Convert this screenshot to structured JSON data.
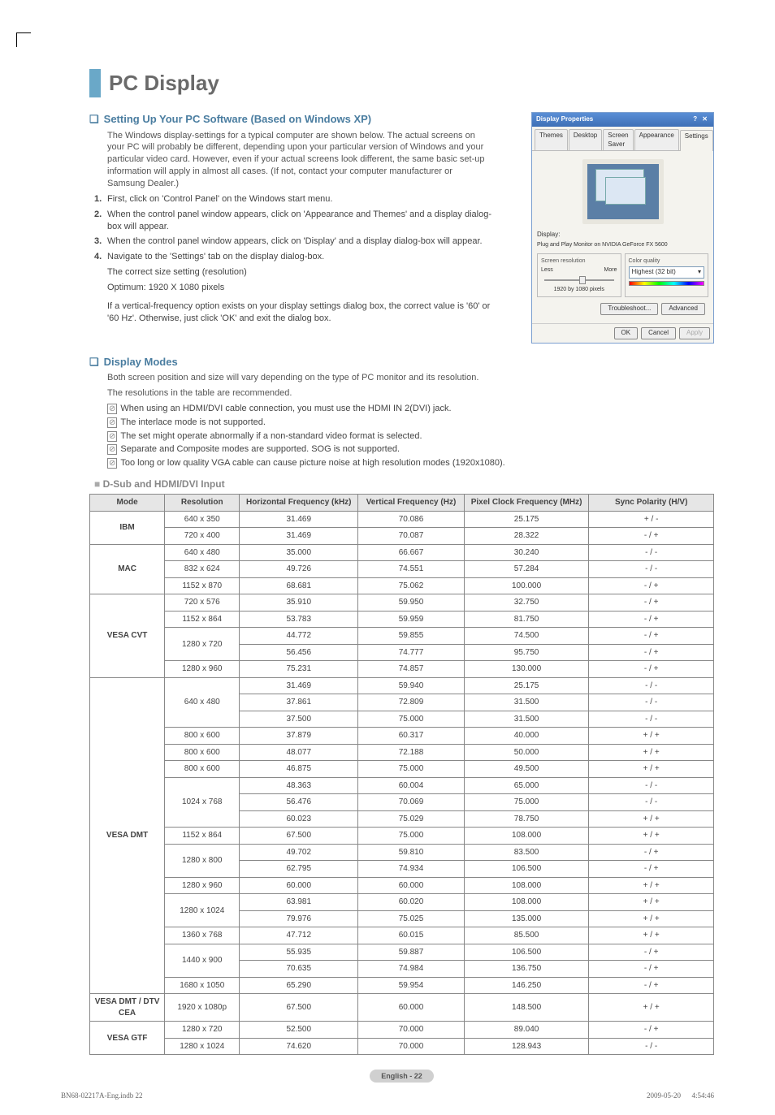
{
  "page": {
    "title": "PC Display",
    "footer_label": "English - 22",
    "indb": "BN68-02217A-Eng.indb   22",
    "timestamp": "2009-05-20      4:54:46"
  },
  "section1": {
    "heading": "Setting Up Your PC Software (Based on Windows XP)",
    "intro": "The Windows display-settings for a typical computer are shown below. The actual screens on your PC will probably be different, depending upon your particular version of Windows and your particular video card. However, even if your actual screens look different, the same basic set-up information will apply in almost all cases. (If not, contact your computer manufacturer or Samsung Dealer.)",
    "steps": [
      "First, click on 'Control Panel' on the Windows start menu.",
      "When the control panel window appears, click on 'Appearance and Themes' and a display dialog-box will appear.",
      "When the control panel window appears, click on 'Display' and a display dialog-box will appear.",
      "Navigate to the 'Settings' tab on the display dialog-box."
    ],
    "step4_extra1": "The correct size setting (resolution)",
    "step4_extra2": "Optimum: 1920 X 1080 pixels",
    "step4_extra3": "If a vertical-frequency option exists on your display settings dialog box, the correct value is '60' or '60 Hz'. Otherwise, just click 'OK' and exit the dialog box."
  },
  "dialog": {
    "title": "Display Properties",
    "tabs": [
      "Themes",
      "Desktop",
      "Screen Saver",
      "Appearance",
      "Settings"
    ],
    "active_tab": 4,
    "display_label": "Display:",
    "display_value": "Plug and Play Monitor on NVIDIA GeForce FX 5600",
    "res_group": "Screen resolution",
    "res_less": "Less",
    "res_more": "More",
    "res_value": "1920 by 1080 pixels",
    "color_group": "Color quality",
    "color_value": "Highest (32 bit)",
    "troubleshoot": "Troubleshoot...",
    "advanced": "Advanced",
    "ok": "OK",
    "cancel": "Cancel",
    "apply": "Apply"
  },
  "section2": {
    "heading": "Display Modes",
    "intro1": "Both screen position and size will vary depending on the type of PC monitor and its resolution.",
    "intro2": "The resolutions in the table are recommended.",
    "notes": [
      "When using an HDMI/DVI cable connection, you must use the HDMI IN 2(DVI) jack.",
      "The interlace mode is not supported.",
      "The set might operate abnormally if a non-standard video format is selected.",
      "Separate and Composite modes are supported. SOG is not supported.",
      "Too long or low quality VGA cable can cause picture noise at high resolution modes (1920x1080)."
    ],
    "table_title": "D-Sub and HDMI/DVI Input"
  },
  "table": {
    "columns": [
      "Mode",
      "Resolution",
      "Horizontal Frequency (kHz)",
      "Vertical Frequency (Hz)",
      "Pixel Clock Frequency (MHz)",
      "Sync Polarity (H/V)"
    ],
    "col_widths": [
      "12%",
      "12%",
      "19%",
      "17%",
      "20%",
      "20%"
    ],
    "header_bg": "#e6e6e6",
    "border_color": "#888888",
    "groups": [
      {
        "mode": "IBM",
        "rows": [
          [
            "640 x 350",
            "31.469",
            "70.086",
            "25.175",
            "+ / -"
          ],
          [
            "720 x 400",
            "31.469",
            "70.087",
            "28.322",
            "- / +"
          ]
        ]
      },
      {
        "mode": "MAC",
        "rows": [
          [
            "640 x 480",
            "35.000",
            "66.667",
            "30.240",
            "- / -"
          ],
          [
            "832 x 624",
            "49.726",
            "74.551",
            "57.284",
            "- / -"
          ],
          [
            "1152 x 870",
            "68.681",
            "75.062",
            "100.000",
            "- / +"
          ]
        ]
      },
      {
        "mode": "VESA CVT",
        "rows": [
          [
            "720 x 576",
            "35.910",
            "59.950",
            "32.750",
            "- / +"
          ],
          [
            "1152 x 864",
            "53.783",
            "59.959",
            "81.750",
            "- / +"
          ],
          [
            "",
            "44.772",
            "59.855",
            "74.500",
            "- / +"
          ],
          [
            "",
            "56.456",
            "74.777",
            "95.750",
            "- / +"
          ],
          [
            "1280 x 960",
            "75.231",
            "74.857",
            "130.000",
            "- / +"
          ]
        ],
        "res_merge": [
          {
            "start": 2,
            "span": 2,
            "label": "1280 x 720"
          }
        ]
      },
      {
        "mode": "VESA DMT",
        "rows": [
          [
            "",
            "31.469",
            "59.940",
            "25.175",
            "- / -"
          ],
          [
            "",
            "37.861",
            "72.809",
            "31.500",
            "- / -"
          ],
          [
            "",
            "37.500",
            "75.000",
            "31.500",
            "- / -"
          ],
          [
            "800 x 600",
            "37.879",
            "60.317",
            "40.000",
            "+ / +"
          ],
          [
            "800 x 600",
            "48.077",
            "72.188",
            "50.000",
            "+ / +"
          ],
          [
            "800 x 600",
            "46.875",
            "75.000",
            "49.500",
            "+ / +"
          ],
          [
            "",
            "48.363",
            "60.004",
            "65.000",
            "- / -"
          ],
          [
            "",
            "56.476",
            "70.069",
            "75.000",
            "- / -"
          ],
          [
            "",
            "60.023",
            "75.029",
            "78.750",
            "+ / +"
          ],
          [
            "1152 x 864",
            "67.500",
            "75.000",
            "108.000",
            "+ / +"
          ],
          [
            "",
            "49.702",
            "59.810",
            "83.500",
            "- / +"
          ],
          [
            "",
            "62.795",
            "74.934",
            "106.500",
            "- / +"
          ],
          [
            "1280 x 960",
            "60.000",
            "60.000",
            "108.000",
            "+ / +"
          ],
          [
            "",
            "63.981",
            "60.020",
            "108.000",
            "+ / +"
          ],
          [
            "",
            "79.976",
            "75.025",
            "135.000",
            "+ / +"
          ],
          [
            "1360 x 768",
            "47.712",
            "60.015",
            "85.500",
            "+ / +"
          ],
          [
            "",
            "55.935",
            "59.887",
            "106.500",
            "- / +"
          ],
          [
            "",
            "70.635",
            "74.984",
            "136.750",
            "- / +"
          ],
          [
            "1680 x 1050",
            "65.290",
            "59.954",
            "146.250",
            "- / +"
          ]
        ],
        "res_merge": [
          {
            "start": 0,
            "span": 3,
            "label": "640 x 480"
          },
          {
            "start": 6,
            "span": 3,
            "label": "1024 x 768"
          },
          {
            "start": 10,
            "span": 2,
            "label": "1280 x 800"
          },
          {
            "start": 13,
            "span": 2,
            "label": "1280 x 1024"
          },
          {
            "start": 16,
            "span": 2,
            "label": "1440 x 900"
          }
        ]
      },
      {
        "mode": "VESA DMT / DTV CEA",
        "rows": [
          [
            "1920 x 1080p",
            "67.500",
            "60.000",
            "148.500",
            "+ / +"
          ]
        ]
      },
      {
        "mode": "VESA GTF",
        "rows": [
          [
            "1280 x 720",
            "52.500",
            "70.000",
            "89.040",
            "- / +"
          ],
          [
            "1280 x 1024",
            "74.620",
            "70.000",
            "128.943",
            "- / -"
          ]
        ]
      }
    ]
  }
}
